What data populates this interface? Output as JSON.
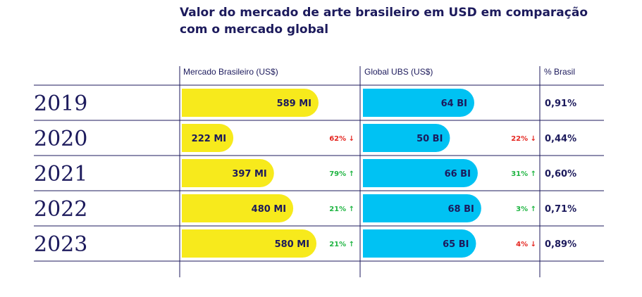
{
  "title": "Valor do mercado de arte brasileiro em USD em comparação com o mercado global",
  "chart_data": {
    "type": "bar",
    "columns": [
      "Mercado Brasileiro (US$)",
      "Global UBS (US$)",
      "% Brasil"
    ],
    "categories": [
      "2019",
      "2020",
      "2021",
      "2022",
      "2023"
    ],
    "series": [
      {
        "name": "Mercado Brasileiro (US$)",
        "values": [
          589,
          222,
          397,
          480,
          580
        ],
        "labels": [
          "589 MI",
          "222 MI",
          "397 MI",
          "480 MI",
          "580 MI"
        ],
        "changes": [
          null,
          "62%",
          "79%",
          "21%",
          "21%"
        ],
        "directions": [
          null,
          "down",
          "up",
          "up",
          "up"
        ],
        "color": "#f7ea1c"
      },
      {
        "name": "Global UBS (US$)",
        "values": [
          64,
          50,
          66,
          68,
          65
        ],
        "labels": [
          "64 BI",
          "50 BI",
          "66 BI",
          "68 BI",
          "65 BI"
        ],
        "changes": [
          null,
          "22%",
          "31%",
          "3%",
          "4%"
        ],
        "directions": [
          null,
          "down",
          "up",
          "up",
          "down"
        ],
        "color": "#00c2f3"
      }
    ],
    "share": [
      "0,91%",
      "0,44%",
      "0,60%",
      "0,71%",
      "0,89%"
    ],
    "colors": {
      "up": "#1fb542",
      "down": "#e52620",
      "text": "#1c1a5c",
      "lines": "#1c1a5c"
    }
  }
}
